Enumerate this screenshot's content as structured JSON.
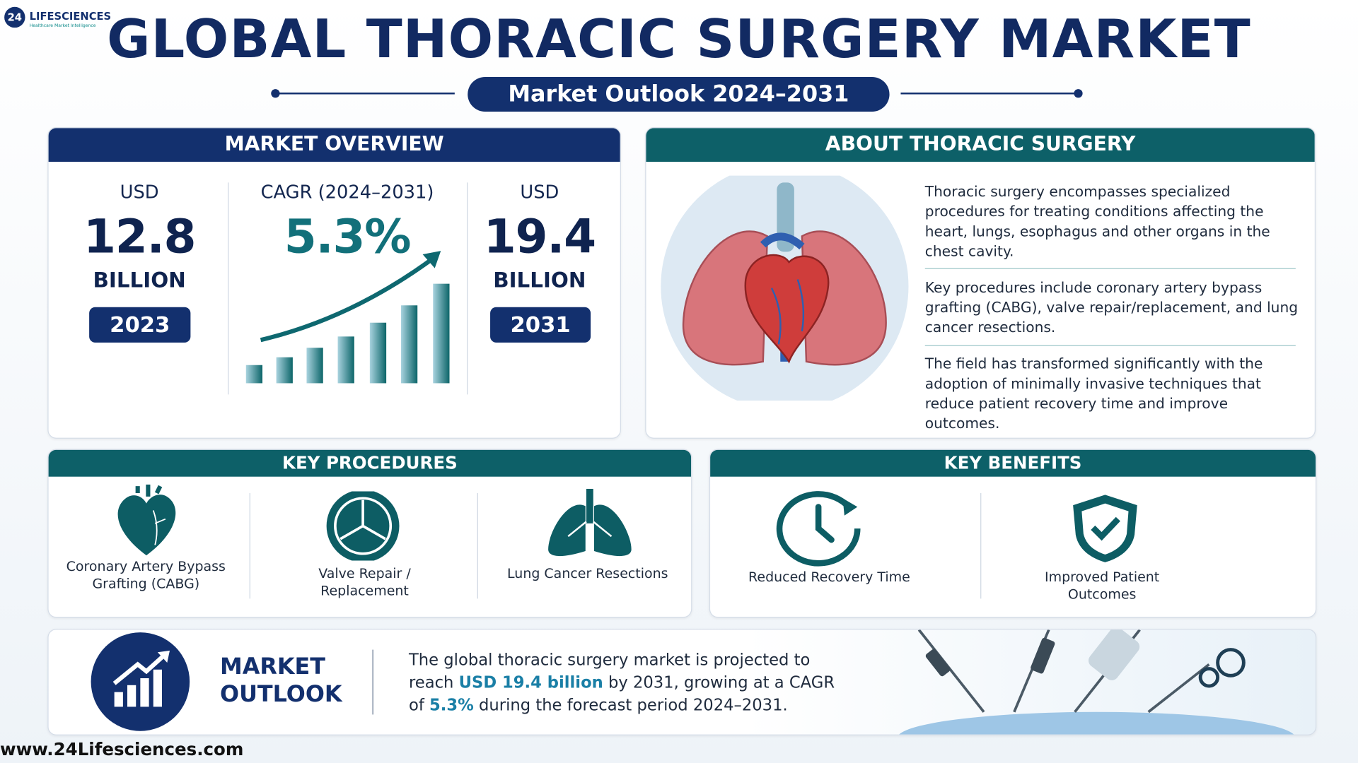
{
  "header": {
    "logo_badge": "24",
    "logo_name": "LIFESCIENCES",
    "logo_tagline": "Healthcare Market Intelligence",
    "title": "GLOBAL THORACIC SURGERY MARKET",
    "subtitle": "Market Outlook 2024–2031"
  },
  "overview": {
    "title": "MARKET OVERVIEW",
    "stats": [
      {
        "label": "USD",
        "value": "12.8",
        "unit": "BILLION",
        "year": "2023"
      },
      {
        "label": "CAGR (2024–2031)",
        "value": "5.3%"
      },
      {
        "label": "USD",
        "value": "19.4",
        "unit": "BILLION",
        "year": "2031"
      }
    ]
  },
  "about": {
    "title": "ABOUT THORACIC SURGERY",
    "paragraphs": [
      "Thoracic surgery encompasses specialized procedures for treating conditions affecting the heart, lungs, esophagus and other organs in the chest cavity.",
      "Key procedures include coronary artery bypass grafting (CABG), valve repair/replacement, and lung cancer resections.",
      "The field has transformed significantly with the adoption of minimally invasive techniques that reduce patient recovery time and improve outcomes."
    ]
  },
  "procedures": {
    "title": "KEY PROCEDURES",
    "items": [
      "Coronary Artery Bypass Grafting (CABG)",
      "Valve Repair / Replacement",
      "Lung Cancer Resections"
    ]
  },
  "benefits": {
    "title": "KEY BENEFITS",
    "items": [
      "Reduced Recovery Time",
      "Improved Patient Outcomes"
    ]
  },
  "outlook": {
    "title": "MARKET OUTLOOK",
    "segments": [
      "The global thoracic surgery market is projected to reach ",
      "USD 19.4 billion",
      " by 2031, growing at a CAGR of ",
      "5.3%",
      " during the forecast period 2024–2031."
    ]
  },
  "footer": {
    "url": "www.24Lifesciences.com"
  }
}
